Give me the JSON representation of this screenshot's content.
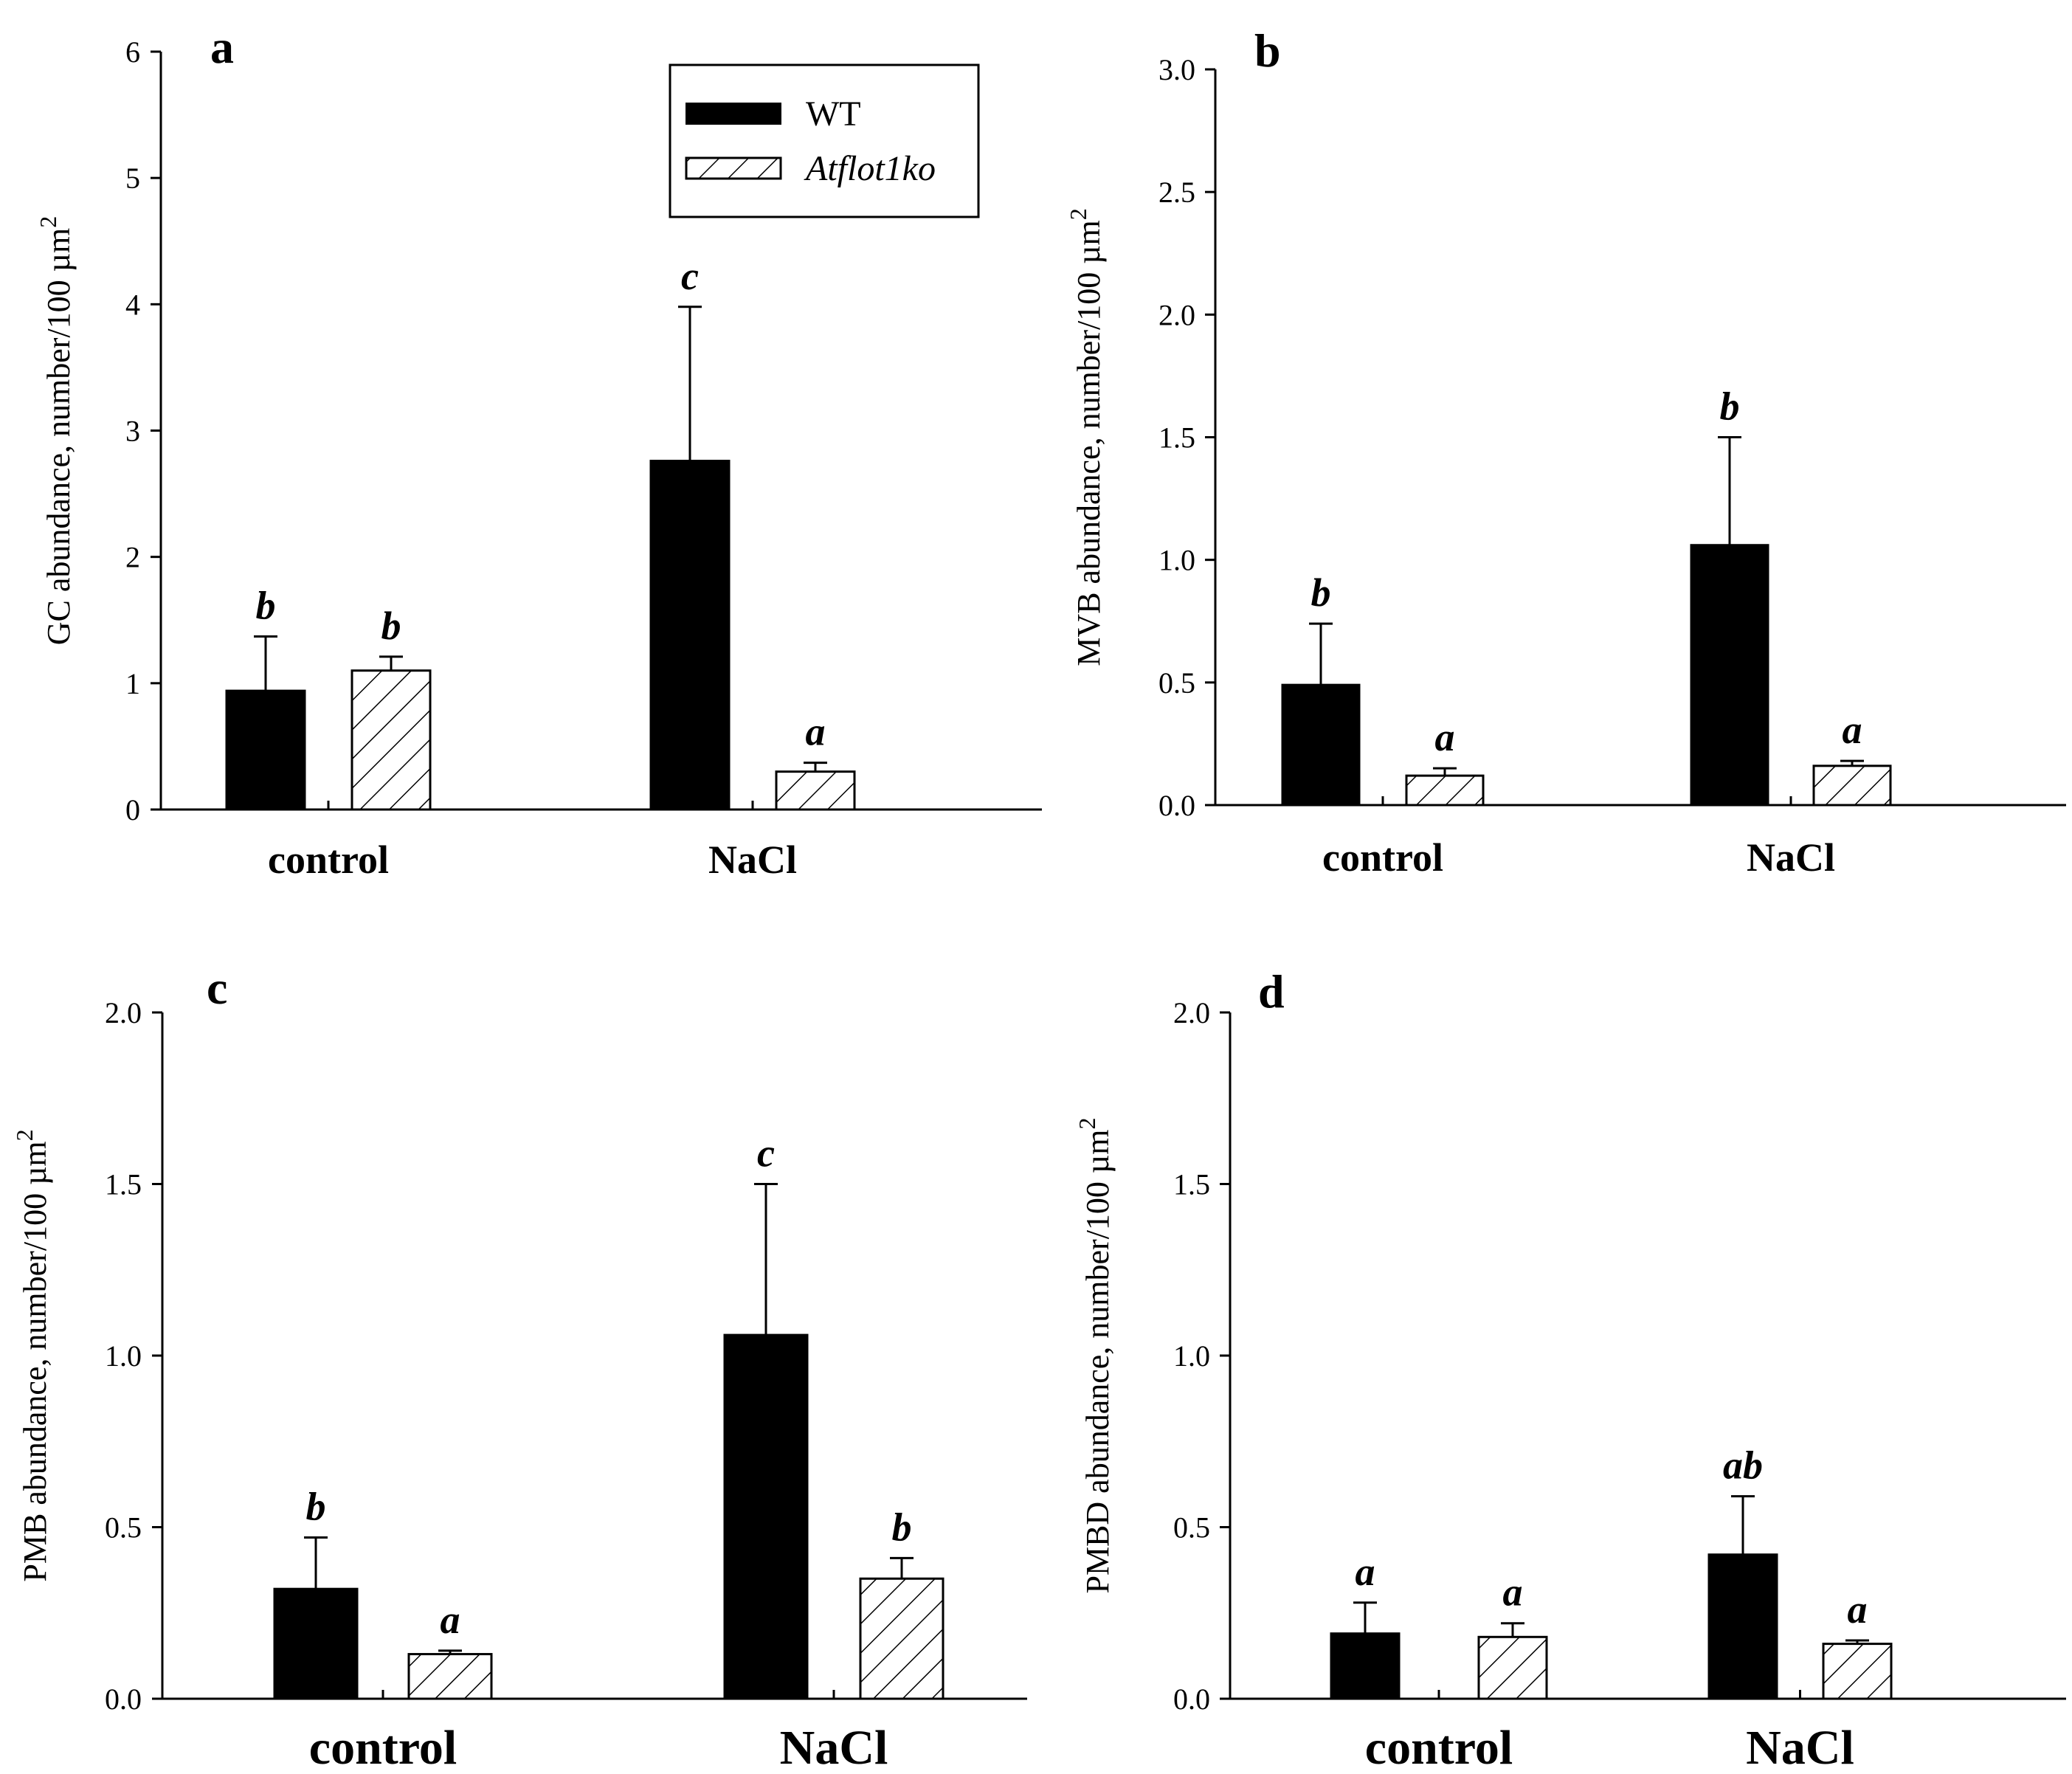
{
  "legend": {
    "items": [
      {
        "name": "WT",
        "italic": false
      },
      {
        "name": "Atflot1ko",
        "italic": true
      }
    ]
  },
  "chart_data": [
    {
      "type": "bar",
      "panel": "a",
      "ylabel": "GC abundance, number/100 µm",
      "ylabel_sup": "2",
      "ylim": [
        0,
        6
      ],
      "yticks": [
        "0",
        "1",
        "2",
        "3",
        "4",
        "5",
        "6"
      ],
      "categories": [
        "control",
        "NaCl"
      ],
      "series": [
        {
          "name": "WT",
          "values": [
            0.94,
            2.76
          ],
          "errors": [
            0.43,
            1.22
          ],
          "letters": [
            "b",
            "c"
          ]
        },
        {
          "name": "Atflot1ko",
          "values": [
            1.1,
            0.3
          ],
          "errors": [
            0.11,
            0.07
          ],
          "letters": [
            "b",
            "a"
          ]
        }
      ]
    },
    {
      "type": "bar",
      "panel": "b",
      "ylabel": "MVB abundance, number/100 µm",
      "ylabel_sup": "2",
      "ylim": [
        0,
        3
      ],
      "yticks": [
        "0.0",
        "0.5",
        "1.0",
        "1.5",
        "2.0",
        "2.5",
        "3.0"
      ],
      "categories": [
        "control",
        "NaCl"
      ],
      "series": [
        {
          "name": "WT",
          "values": [
            0.49,
            1.06
          ],
          "errors": [
            0.25,
            0.44
          ],
          "letters": [
            "b",
            "b"
          ]
        },
        {
          "name": "Atflot1ko",
          "values": [
            0.12,
            0.16
          ],
          "errors": [
            0.03,
            0.02
          ],
          "letters": [
            "a",
            "a"
          ]
        }
      ]
    },
    {
      "type": "bar",
      "panel": "c",
      "ylabel": "PMB abundance, number/100 µm",
      "ylabel_sup": "2",
      "ylim": [
        0,
        2
      ],
      "yticks": [
        "0.0",
        "0.5",
        "1.0",
        "1.5",
        "2.0"
      ],
      "categories": [
        "control",
        "NaCl"
      ],
      "series": [
        {
          "name": "WT",
          "values": [
            0.32,
            1.06
          ],
          "errors": [
            0.15,
            0.44
          ],
          "letters": [
            "b",
            "c"
          ]
        },
        {
          "name": "Atflot1ko",
          "values": [
            0.13,
            0.35
          ],
          "errors": [
            0.01,
            0.06
          ],
          "letters": [
            "a",
            "b"
          ]
        }
      ]
    },
    {
      "type": "bar",
      "panel": "d",
      "ylabel": "PMBD abundance, number/100 µm",
      "ylabel_sup": "2",
      "ylim": [
        0,
        2
      ],
      "yticks": [
        "0.0",
        "0.5",
        "1.0",
        "1.5",
        "2.0"
      ],
      "categories": [
        "control",
        "NaCl"
      ],
      "series": [
        {
          "name": "WT",
          "values": [
            0.19,
            0.42
          ],
          "errors": [
            0.09,
            0.17
          ],
          "letters": [
            "a",
            "ab"
          ]
        },
        {
          "name": "Atflot1ko",
          "values": [
            0.18,
            0.16
          ],
          "errors": [
            0.04,
            0.01
          ],
          "letters": [
            "a",
            "a"
          ]
        }
      ]
    }
  ]
}
